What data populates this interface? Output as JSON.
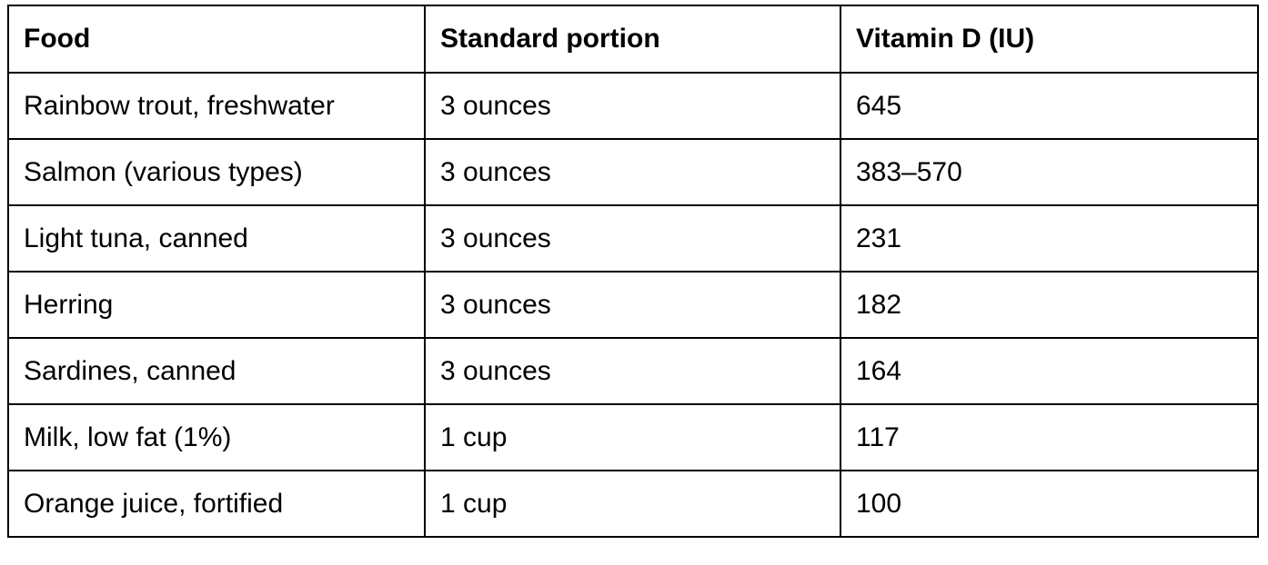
{
  "table": {
    "headers": [
      "Food",
      "Standard portion",
      "Vitamin D (IU)"
    ],
    "rows": [
      [
        "Rainbow trout, freshwater",
        "3 ounces",
        "645"
      ],
      [
        "Salmon (various types)",
        "3 ounces",
        "383–570"
      ],
      [
        "Light tuna, canned",
        "3 ounces",
        "231"
      ],
      [
        "Herring",
        "3 ounces",
        "182"
      ],
      [
        "Sardines, canned",
        "3 ounces",
        "164"
      ],
      [
        "Milk, low fat (1%)",
        "1 cup",
        "117"
      ],
      [
        "Orange juice, fortified",
        "1 cup",
        "100"
      ]
    ]
  }
}
